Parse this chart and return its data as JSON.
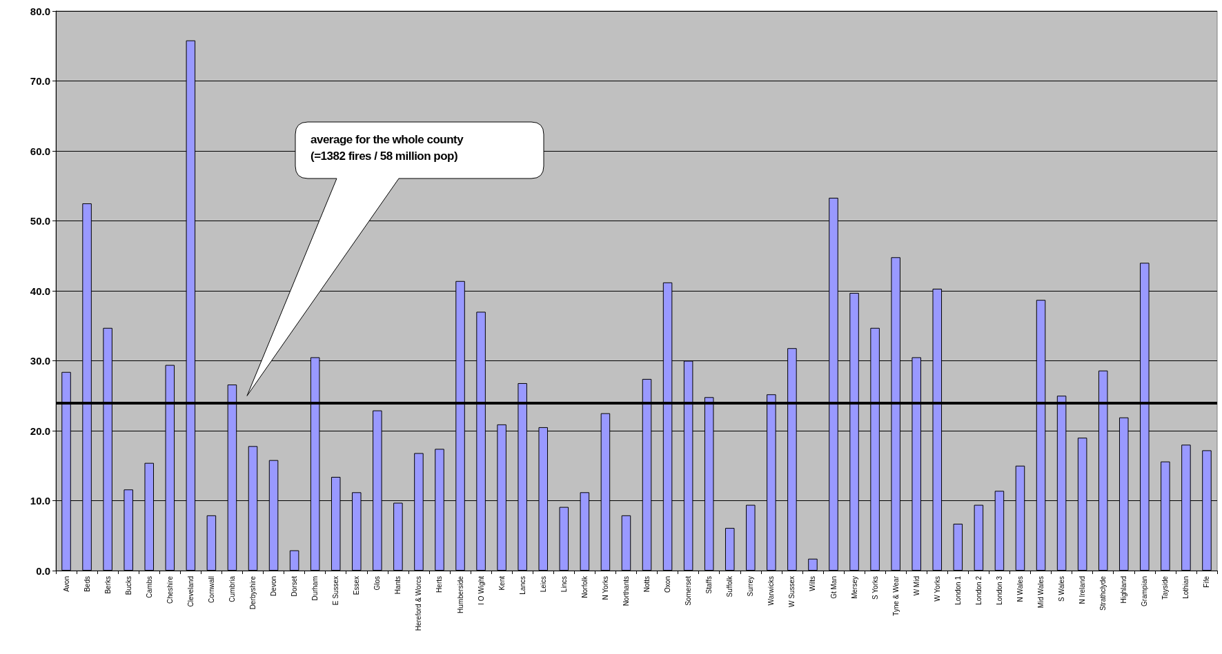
{
  "chart_data": {
    "type": "bar",
    "categories": [
      "Avon",
      "Beds",
      "Berks",
      "Bucks",
      "Cambs",
      "Cheshire",
      "Cleveland",
      "Cornwall",
      "Cumbria",
      "Derbyshire",
      "Devon",
      "Dorset",
      "Durham",
      "E Sussex",
      "Essex",
      "Glos",
      "Hants",
      "Hereford & Worcs",
      "Herts",
      "Humberside",
      "I O Wight",
      "Kent",
      "Lancs",
      "Leics",
      "Lincs",
      "Norfolk",
      "N Yorks",
      "Northants",
      "Notts",
      "Oxon",
      "Somerset",
      "Staffs",
      "Suffolk",
      "Surrey",
      "Warwicks",
      "W Sussex",
      "Wilts",
      "Gt Man",
      "Mersey",
      "S Yorks",
      "Tyne & Wear",
      "W Mid",
      "W Yorks",
      "London 1",
      "London 2",
      "London 3",
      "N Wales",
      "Mid Wales",
      "S Wales",
      "N Ireland",
      "Strathclyde",
      "Highland",
      "Grampian",
      "Tayside",
      "Lothian",
      "Fife"
    ],
    "values": [
      28.4,
      52.5,
      34.7,
      11.6,
      15.4,
      29.4,
      75.8,
      7.9,
      26.6,
      17.8,
      15.8,
      2.9,
      30.5,
      13.4,
      11.2,
      22.9,
      9.7,
      16.8,
      17.4,
      41.4,
      37.0,
      20.9,
      26.8,
      20.5,
      9.1,
      11.2,
      22.5,
      7.9,
      27.4,
      41.2,
      30.0,
      24.8,
      6.1,
      9.4,
      25.2,
      31.8,
      1.7,
      53.3,
      39.7,
      34.7,
      44.8,
      30.5,
      40.3,
      6.7,
      9.4,
      11.4,
      15.0,
      38.7,
      25.0,
      19.0,
      28.6,
      21.9,
      44.0,
      15.6,
      18.0,
      17.2
    ],
    "color": "#9999ff",
    "ylim": [
      0,
      80
    ],
    "yticks": [
      {
        "value": 0,
        "label": "0.0"
      },
      {
        "value": 10,
        "label": "10.0"
      },
      {
        "value": 20,
        "label": "20.0"
      },
      {
        "value": 30,
        "label": "30.0"
      },
      {
        "value": 40,
        "label": "40.0"
      },
      {
        "value": 50,
        "label": "50.0"
      },
      {
        "value": 60,
        "label": "60.0"
      },
      {
        "value": 70,
        "label": "70.0"
      },
      {
        "value": 80,
        "label": "80.0"
      }
    ],
    "grid": "y",
    "ref_lines": [
      {
        "axis": "y",
        "value": 24,
        "color": "#000000"
      }
    ],
    "annotations": [
      "average for the whole county\n(=1382 fires / 58 million pop)"
    ]
  }
}
